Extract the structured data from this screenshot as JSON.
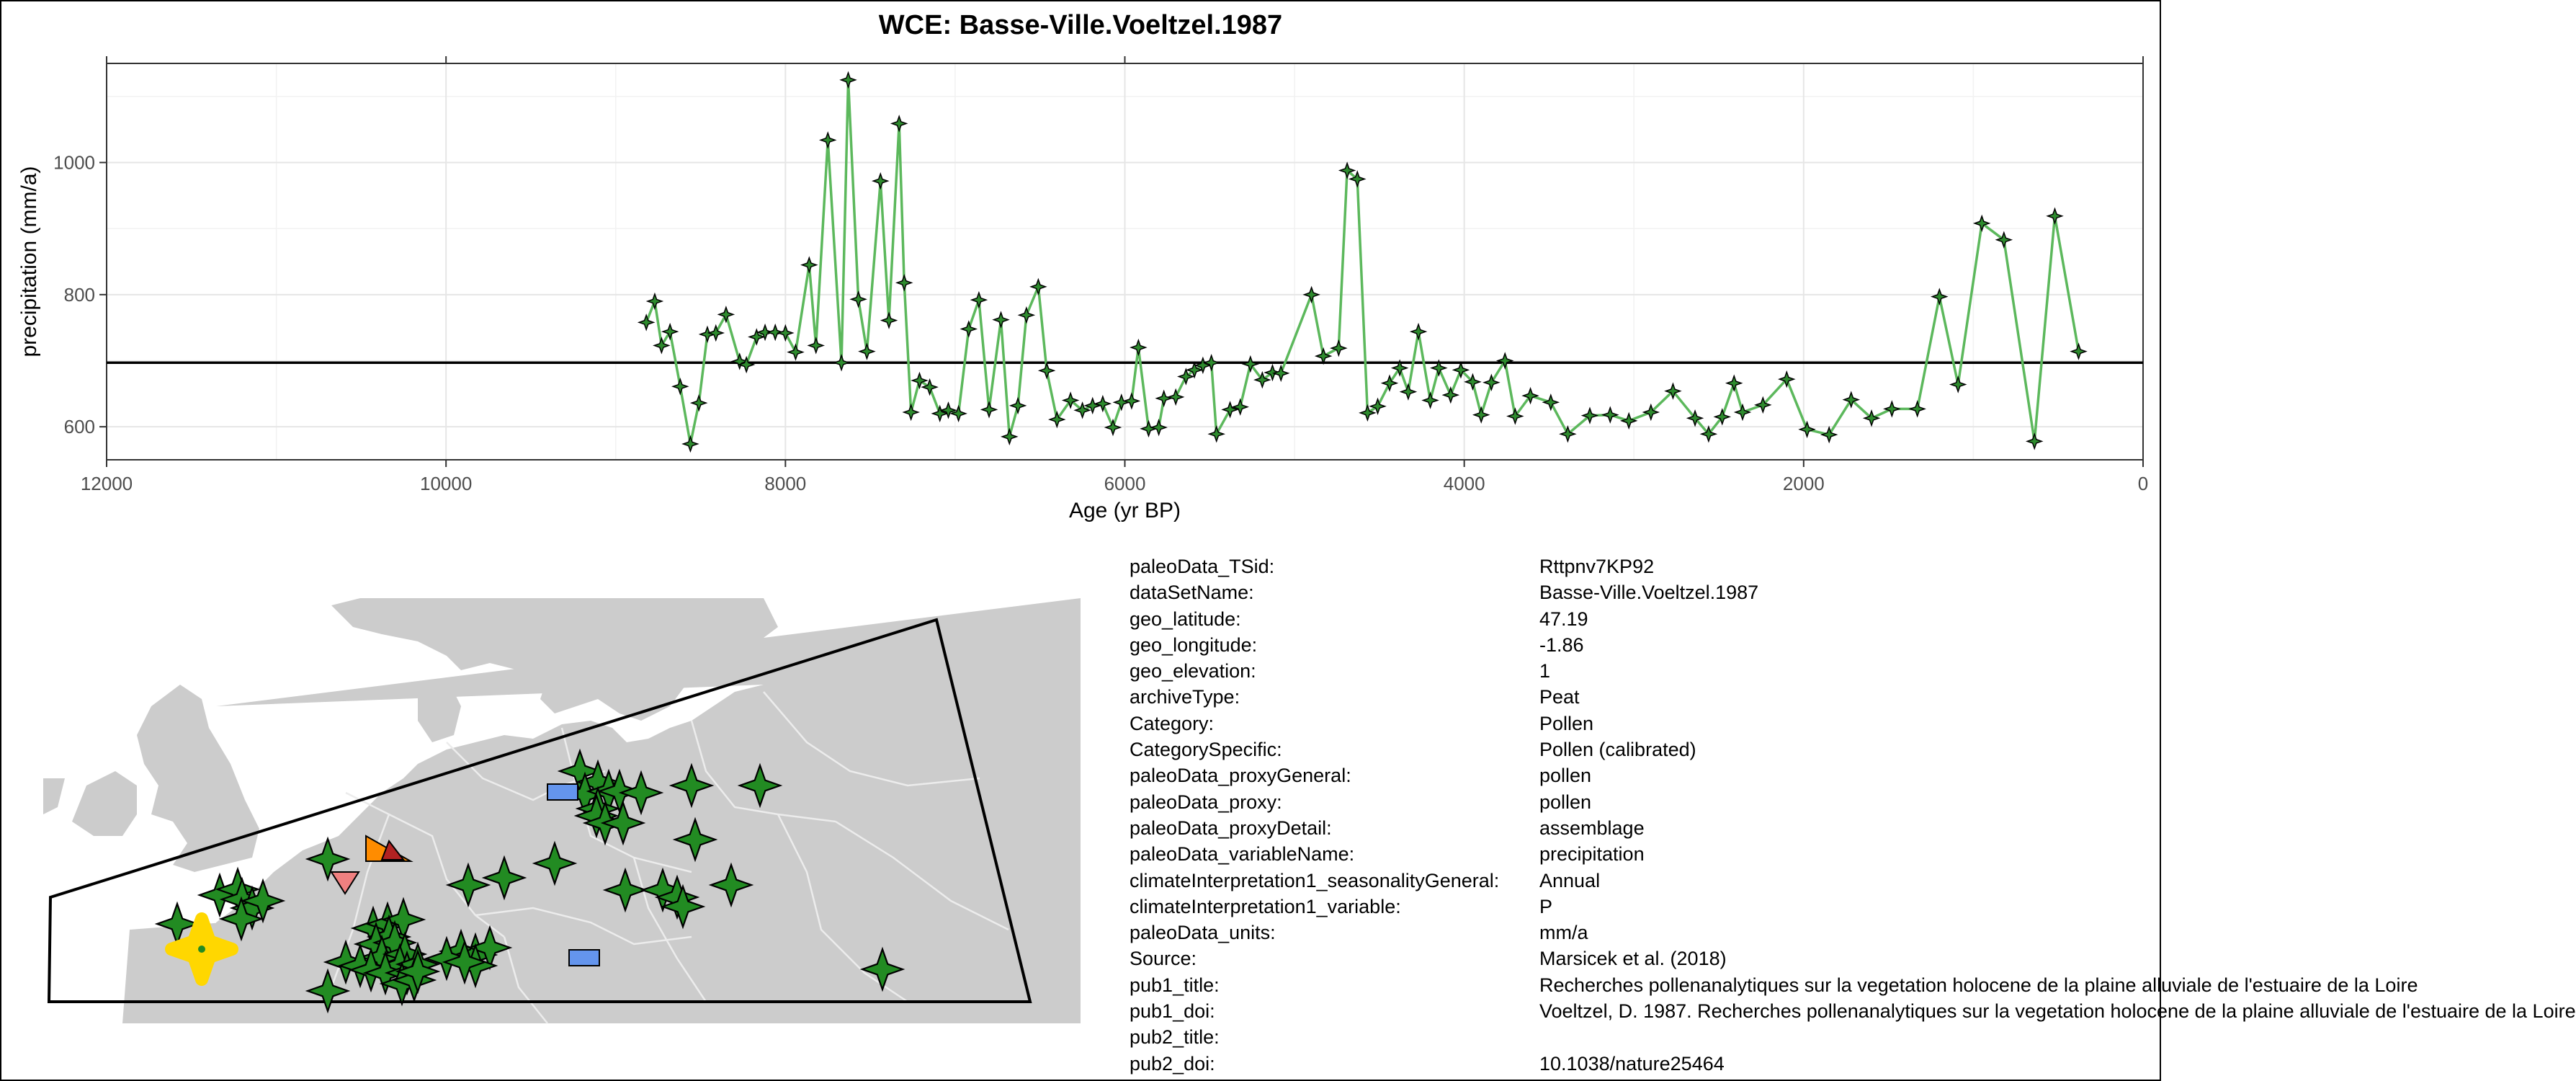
{
  "chart_data": {
    "type": "line",
    "title": "WCE: Basse-Ville.Voeltzel.1987",
    "xlabel": "Age (yr BP)",
    "ylabel": "precipitation (mm/a)",
    "xlim": [
      12000,
      0
    ],
    "ylim": [
      550,
      1150
    ],
    "x_ticks": [
      12000,
      10000,
      8000,
      6000,
      4000,
      2000,
      0
    ],
    "y_ticks": [
      600,
      800,
      1000
    ],
    "reference_line": 697,
    "grid": true,
    "line_color": "#5cb85c",
    "marker_color": "#2e8b2e",
    "series": [
      {
        "x": [
          8820,
          8770,
          8730,
          8680,
          8620,
          8560,
          8510,
          8460,
          8410,
          8350,
          8270,
          8230,
          8170,
          8120,
          8060,
          8000,
          7940,
          7860,
          7820,
          7750,
          7670,
          7630,
          7570,
          7520,
          7440,
          7390,
          7330,
          7300,
          7260,
          7210,
          7150,
          7090,
          7040,
          6980,
          6920,
          6860,
          6800,
          6730,
          6680,
          6630,
          6580,
          6510,
          6460,
          6400,
          6320,
          6250,
          6190,
          6130,
          6070,
          6020,
          5960,
          5920,
          5860,
          5800,
          5770,
          5700,
          5640,
          5590,
          5540,
          5490,
          5460,
          5380,
          5320,
          5260,
          5190,
          5130,
          5080,
          4900,
          4830,
          4740,
          4690,
          4630,
          4570,
          4510,
          4440,
          4380,
          4330,
          4270,
          4200,
          4150,
          4080,
          4020,
          3950,
          3900,
          3840,
          3760,
          3700,
          3610,
          3490,
          3390,
          3260,
          3140,
          3030,
          2900,
          2770,
          2640,
          2560,
          2480,
          2410,
          2360,
          2240,
          2100,
          1980,
          1850,
          1720,
          1600,
          1480,
          1330,
          1200,
          1090,
          950,
          820,
          640,
          520,
          380
        ],
        "y": [
          758,
          790,
          723,
          744,
          661,
          574,
          636,
          740,
          742,
          770,
          699,
          694,
          736,
          743,
          743,
          742,
          713,
          845,
          723,
          1034,
          697,
          1125,
          793,
          714,
          972,
          761,
          1059,
          818,
          622,
          670,
          660,
          620,
          625,
          620,
          748,
          792,
          626,
          762,
          585,
          632,
          769,
          812,
          685,
          611,
          640,
          625,
          632,
          635,
          599,
          637,
          639,
          720,
          597,
          599,
          643,
          645,
          676,
          686,
          693,
          697,
          589,
          626,
          630,
          695,
          671,
          682,
          681,
          800,
          707,
          719,
          988,
          975,
          621,
          631,
          666,
          689,
          653,
          744,
          640,
          689,
          648,
          686,
          668,
          618,
          667,
          700,
          616,
          647,
          637,
          589,
          617,
          618,
          609,
          622,
          654,
          613,
          589,
          615,
          666,
          622,
          633,
          672,
          596,
          588,
          641,
          613,
          627,
          627,
          797,
          664,
          908,
          883,
          578,
          919,
          714
        ]
      }
    ]
  },
  "map": {
    "land_color": "#cccccc",
    "sea_color": "#ffffff",
    "border_color": "#e8e8e8",
    "site_marker_color": "#228b22",
    "highlight_color": "#ffd700"
  },
  "metadata": [
    {
      "key": "paleoData_TSid:",
      "value": "Rttpnv7KP92"
    },
    {
      "key": "dataSetName:",
      "value": "Basse-Ville.Voeltzel.1987"
    },
    {
      "key": "geo_latitude:",
      "value": "47.19"
    },
    {
      "key": "geo_longitude:",
      "value": "-1.86"
    },
    {
      "key": "geo_elevation:",
      "value": "1"
    },
    {
      "key": "archiveType:",
      "value": "Peat"
    },
    {
      "key": "Category:",
      "value": "Pollen"
    },
    {
      "key": "CategorySpecific:",
      "value": "Pollen (calibrated)"
    },
    {
      "key": "paleoData_proxyGeneral:",
      "value": "pollen"
    },
    {
      "key": "paleoData_proxy:",
      "value": "pollen"
    },
    {
      "key": "paleoData_proxyDetail:",
      "value": "assemblage"
    },
    {
      "key": "paleoData_variableName:",
      "value": "precipitation"
    },
    {
      "key": "climateInterpretation1_seasonalityGeneral:",
      "value": "Annual"
    },
    {
      "key": "climateInterpretation1_variable:",
      "value": "P"
    },
    {
      "key": "paleoData_units:",
      "value": "mm/a"
    },
    {
      "key": "Source:",
      "value": "Marsicek et al. (2018)"
    },
    {
      "key": "pub1_title:",
      "value": "Recherches pollenanalytiques sur la vegetation holocene de la plaine alluviale de l'estuaire de la Loire"
    },
    {
      "key": "pub1_doi:",
      "value": "Voeltzel, D. 1987. Recherches pollenanalytiques sur la vegetation holocene de la plaine alluviale de l'estuaire de la Loire"
    },
    {
      "key": "pub2_title:",
      "value": ""
    },
    {
      "key": "pub2_doi:",
      "value": "10.1038/nature25464"
    }
  ]
}
